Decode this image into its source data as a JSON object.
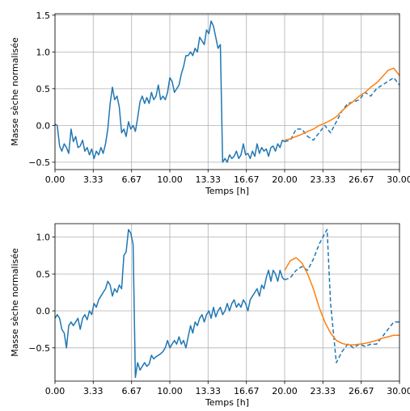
{
  "style": {
    "history_color": "#1f77b4",
    "forecast_color": "#ff7f0e",
    "actual_future_color": "#1f77b4",
    "grid_color": "#b0b0b0"
  },
  "chart_data": [
    {
      "type": "line",
      "xlabel": "Temps [h]",
      "ylabel": "Masse sèche normalisée",
      "xlim": [
        0,
        30
      ],
      "ylim": [
        -0.6,
        1.52
      ],
      "xticks": [
        0,
        3.33,
        6.67,
        10,
        13.33,
        16.67,
        20,
        23.33,
        26.67,
        30
      ],
      "xtick_labels": [
        "0.00",
        "3.33",
        "6.67",
        "10.00",
        "13.33",
        "16.67",
        "20.00",
        "23.33",
        "26.67",
        "30.00"
      ],
      "yticks": [
        -0.5,
        0,
        0.5,
        1.0,
        1.5
      ],
      "ytick_labels": [
        "−0.5",
        "0.0",
        "0.5",
        "1.0",
        "1.5"
      ],
      "grid": true,
      "series": [
        {
          "style": "solid",
          "color_key": "history_color",
          "x": [
            0,
            0.2,
            0.4,
            0.6,
            0.8,
            1.0,
            1.2,
            1.4,
            1.6,
            1.8,
            2.0,
            2.2,
            2.4,
            2.6,
            2.8,
            3.0,
            3.2,
            3.4,
            3.6,
            3.8,
            4.0,
            4.2,
            4.4,
            4.6,
            4.8,
            5.0,
            5.2,
            5.4,
            5.6,
            5.8,
            6.0,
            6.2,
            6.4,
            6.6,
            6.8,
            7.0,
            7.2,
            7.4,
            7.6,
            7.8,
            8.0,
            8.2,
            8.4,
            8.6,
            8.8,
            9.0,
            9.2,
            9.4,
            9.6,
            9.8,
            10.0,
            10.2,
            10.4,
            10.6,
            10.8,
            11.0,
            11.2,
            11.4,
            11.6,
            11.8,
            12.0,
            12.2,
            12.4,
            12.6,
            12.8,
            13.0,
            13.2,
            13.4,
            13.6,
            13.8,
            14.0,
            14.2,
            14.4,
            14.6,
            14.8,
            15.0,
            15.2,
            15.4,
            15.6,
            15.8,
            16.0,
            16.2,
            16.4,
            16.6,
            16.8,
            17.0,
            17.2,
            17.4,
            17.6,
            17.8,
            18.0,
            18.2,
            18.4,
            18.6,
            18.8,
            19.0,
            19.2,
            19.4,
            19.6,
            19.8,
            20.0
          ],
          "y": [
            0.02,
            0.0,
            -0.28,
            -0.35,
            -0.25,
            -0.3,
            -0.38,
            -0.05,
            -0.22,
            -0.15,
            -0.3,
            -0.28,
            -0.2,
            -0.35,
            -0.3,
            -0.4,
            -0.32,
            -0.45,
            -0.35,
            -0.4,
            -0.3,
            -0.38,
            -0.25,
            -0.05,
            0.3,
            0.52,
            0.35,
            0.4,
            0.25,
            -0.1,
            -0.05,
            -0.15,
            0.05,
            -0.05,
            0.0,
            -0.08,
            0.1,
            0.32,
            0.4,
            0.3,
            0.38,
            0.3,
            0.45,
            0.35,
            0.4,
            0.55,
            0.35,
            0.4,
            0.35,
            0.45,
            0.65,
            0.6,
            0.45,
            0.5,
            0.55,
            0.7,
            0.8,
            0.95,
            0.95,
            1.0,
            0.95,
            1.05,
            1.0,
            1.2,
            1.15,
            1.1,
            1.3,
            1.25,
            1.42,
            1.35,
            1.2,
            1.05,
            1.1,
            -0.5,
            -0.45,
            -0.5,
            -0.4,
            -0.45,
            -0.42,
            -0.35,
            -0.45,
            -0.4,
            -0.25,
            -0.4,
            -0.38,
            -0.45,
            -0.35,
            -0.42,
            -0.25,
            -0.38,
            -0.3,
            -0.35,
            -0.32,
            -0.42,
            -0.3,
            -0.28,
            -0.35,
            -0.25,
            -0.3,
            -0.2,
            -0.22
          ]
        },
        {
          "style": "dashed",
          "color_key": "actual_future_color",
          "x": [
            20.0,
            20.5,
            21.0,
            21.5,
            22.0,
            22.5,
            23.0,
            23.5,
            24.0,
            24.5,
            25.0,
            25.5,
            26.0,
            26.5,
            27.0,
            27.5,
            28.0,
            28.5,
            29.0,
            29.5,
            30.0
          ],
          "y": [
            -0.22,
            -0.2,
            -0.05,
            -0.05,
            -0.15,
            -0.2,
            -0.1,
            0.0,
            -0.1,
            0.05,
            0.2,
            0.3,
            0.32,
            0.35,
            0.45,
            0.4,
            0.5,
            0.55,
            0.6,
            0.65,
            0.55
          ]
        },
        {
          "style": "solid",
          "color_key": "forecast_color",
          "x": [
            20.0,
            20.5,
            21.0,
            21.5,
            22.0,
            22.5,
            23.0,
            23.5,
            24.0,
            24.5,
            25.0,
            25.5,
            26.0,
            26.5,
            27.0,
            27.5,
            28.0,
            28.5,
            29.0,
            29.5,
            30.0
          ],
          "y": [
            -0.2,
            -0.18,
            -0.15,
            -0.12,
            -0.08,
            -0.05,
            0.0,
            0.03,
            0.07,
            0.12,
            0.2,
            0.27,
            0.33,
            0.4,
            0.45,
            0.52,
            0.58,
            0.66,
            0.75,
            0.78,
            0.68
          ]
        }
      ]
    },
    {
      "type": "line",
      "xlabel": "Temps [h]",
      "ylabel": "Masse sèche normalisée",
      "xlim": [
        0,
        30
      ],
      "ylim": [
        -0.95,
        1.18
      ],
      "xticks": [
        0,
        3.33,
        6.67,
        10,
        13.33,
        16.67,
        20,
        23.33,
        26.67,
        30
      ],
      "xtick_labels": [
        "0.00",
        "3.33",
        "6.67",
        "10.00",
        "13.33",
        "16.67",
        "20.00",
        "23.33",
        "26.67",
        "30.00"
      ],
      "yticks": [
        -0.5,
        0,
        0.5,
        1.0
      ],
      "ytick_labels": [
        "−0.5",
        "0.0",
        "0.5",
        "1.0"
      ],
      "grid": true,
      "series": [
        {
          "style": "solid",
          "color_key": "history_color",
          "x": [
            0,
            0.2,
            0.4,
            0.6,
            0.8,
            1.0,
            1.2,
            1.4,
            1.6,
            1.8,
            2.0,
            2.2,
            2.4,
            2.6,
            2.8,
            3.0,
            3.2,
            3.4,
            3.6,
            3.8,
            4.0,
            4.2,
            4.4,
            4.6,
            4.8,
            5.0,
            5.2,
            5.4,
            5.6,
            5.8,
            6.0,
            6.2,
            6.4,
            6.6,
            6.8,
            7.0,
            7.2,
            7.4,
            7.6,
            7.8,
            8.0,
            8.2,
            8.4,
            8.6,
            8.8,
            9.0,
            9.2,
            9.4,
            9.6,
            9.8,
            10.0,
            10.2,
            10.4,
            10.6,
            10.8,
            11.0,
            11.2,
            11.4,
            11.6,
            11.8,
            12.0,
            12.2,
            12.4,
            12.6,
            12.8,
            13.0,
            13.2,
            13.4,
            13.6,
            13.8,
            14.0,
            14.2,
            14.4,
            14.6,
            14.8,
            15.0,
            15.2,
            15.4,
            15.6,
            15.8,
            16.0,
            16.2,
            16.4,
            16.6,
            16.8,
            17.0,
            17.2,
            17.4,
            17.6,
            17.8,
            18.0,
            18.2,
            18.4,
            18.6,
            18.8,
            19.0,
            19.2,
            19.4,
            19.6,
            19.8,
            20.0
          ],
          "y": [
            -0.1,
            -0.05,
            -0.1,
            -0.25,
            -0.3,
            -0.5,
            -0.2,
            -0.15,
            -0.2,
            -0.15,
            -0.1,
            -0.25,
            -0.1,
            -0.05,
            -0.12,
            0.0,
            -0.05,
            0.1,
            0.05,
            0.15,
            0.2,
            0.25,
            0.3,
            0.4,
            0.35,
            0.2,
            0.3,
            0.25,
            0.35,
            0.3,
            0.75,
            0.8,
            1.1,
            1.05,
            0.9,
            -0.9,
            -0.7,
            -0.8,
            -0.75,
            -0.7,
            -0.75,
            -0.72,
            -0.6,
            -0.65,
            -0.62,
            -0.6,
            -0.58,
            -0.55,
            -0.5,
            -0.4,
            -0.5,
            -0.45,
            -0.4,
            -0.45,
            -0.35,
            -0.45,
            -0.4,
            -0.5,
            -0.35,
            -0.2,
            -0.3,
            -0.15,
            -0.2,
            -0.1,
            -0.05,
            -0.15,
            -0.05,
            0.0,
            -0.1,
            0.05,
            -0.08,
            0.0,
            0.05,
            -0.05,
            0.0,
            0.1,
            0.0,
            0.1,
            0.15,
            0.05,
            0.1,
            0.05,
            0.15,
            0.1,
            0.0,
            0.15,
            0.2,
            0.25,
            0.3,
            0.2,
            0.35,
            0.3,
            0.45,
            0.55,
            0.4,
            0.55,
            0.5,
            0.4,
            0.55,
            0.45,
            0.42
          ]
        },
        {
          "style": "dashed",
          "color_key": "actual_future_color",
          "x": [
            20.0,
            20.5,
            21.0,
            21.5,
            22.0,
            22.5,
            23.0,
            23.5,
            23.7,
            24.0,
            24.5,
            25.0,
            25.5,
            26.0,
            26.5,
            27.0,
            27.5,
            28.0,
            28.5,
            29.0,
            29.5,
            30.0
          ],
          "y": [
            0.42,
            0.45,
            0.55,
            0.6,
            0.55,
            0.7,
            0.9,
            1.05,
            1.1,
            0.1,
            -0.7,
            -0.55,
            -0.45,
            -0.5,
            -0.45,
            -0.48,
            -0.45,
            -0.45,
            -0.35,
            -0.25,
            -0.15,
            -0.15
          ]
        },
        {
          "style": "solid",
          "color_key": "forecast_color",
          "x": [
            20.0,
            20.5,
            21.0,
            21.5,
            22.0,
            22.5,
            23.0,
            23.5,
            24.0,
            24.5,
            25.0,
            25.5,
            26.0,
            26.5,
            27.0,
            27.5,
            28.0,
            28.5,
            29.0,
            29.5,
            30.0
          ],
          "y": [
            0.55,
            0.68,
            0.72,
            0.65,
            0.5,
            0.3,
            0.05,
            -0.15,
            -0.3,
            -0.4,
            -0.44,
            -0.46,
            -0.46,
            -0.45,
            -0.44,
            -0.42,
            -0.4,
            -0.37,
            -0.35,
            -0.33,
            -0.33
          ]
        }
      ]
    }
  ]
}
